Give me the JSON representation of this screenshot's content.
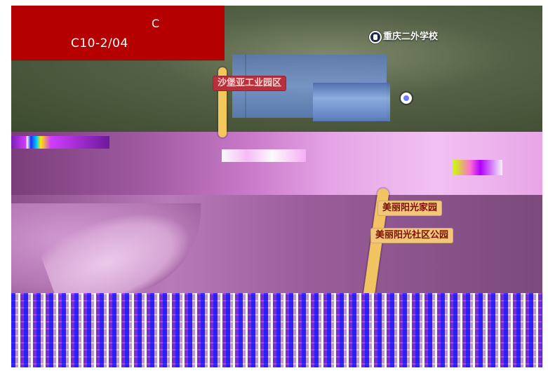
{
  "header": {
    "line1": "C",
    "code": "C10-2/04"
  },
  "map": {
    "labels": {
      "industrial_zone": "沙堡亚工业园区",
      "community_home": "美丽阳光家园",
      "community_park": "美丽阳光社区公园",
      "school_1": "重庆二外学校"
    },
    "icons": {
      "school": "school-icon",
      "poi": "poi-icon"
    },
    "colors": {
      "header_bg": "#b40000",
      "label_yellow": "#f3c77a",
      "label_red": "#b92f3c"
    }
  }
}
